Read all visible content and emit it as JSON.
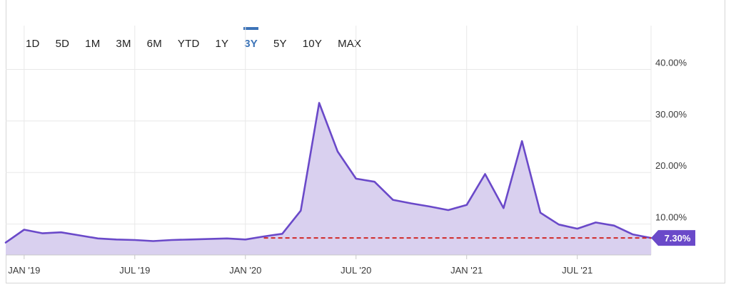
{
  "range_selector": {
    "options": [
      "1D",
      "5D",
      "1M",
      "3M",
      "6M",
      "YTD",
      "1Y",
      "3Y",
      "5Y",
      "10Y",
      "MAX"
    ],
    "selected": "3Y"
  },
  "colors": {
    "line": "#6a49c9",
    "fill": "#d9d0ef",
    "reference": "#d02828",
    "active_range": "#3d74b8",
    "grid": "#e8e8e8"
  },
  "chart_data": {
    "type": "area",
    "title": "",
    "xlabel": "",
    "ylabel": "",
    "x_range": [
      "2018-12",
      "2021-11"
    ],
    "ylim": [
      4.0,
      48.5
    ],
    "y_ticks": [
      10,
      20,
      30,
      40
    ],
    "y_tick_labels": [
      "10.00%",
      "20.00%",
      "30.00%",
      "40.00%"
    ],
    "x_ticks": [
      "2019-01",
      "2019-07",
      "2020-01",
      "2020-07",
      "2021-01",
      "2021-07"
    ],
    "x_tick_labels": [
      "JAN '19",
      "JUL '19",
      "JAN '20",
      "JUL '20",
      "JAN '21",
      "JUL '21"
    ],
    "grid": true,
    "series": [
      {
        "points": [
          [
            "2018-12",
            6.4
          ],
          [
            "2019-01",
            8.9
          ],
          [
            "2019-02",
            8.2
          ],
          [
            "2019-03",
            8.4
          ],
          [
            "2019-04",
            7.8
          ],
          [
            "2019-05",
            7.2
          ],
          [
            "2019-06",
            7.0
          ],
          [
            "2019-07",
            6.9
          ],
          [
            "2019-08",
            6.7
          ],
          [
            "2019-09",
            6.9
          ],
          [
            "2019-10",
            7.0
          ],
          [
            "2019-11",
            7.1
          ],
          [
            "2019-12",
            7.2
          ],
          [
            "2020-01",
            7.0
          ],
          [
            "2020-02",
            7.6
          ],
          [
            "2020-03",
            8.1
          ],
          [
            "2020-04",
            12.6
          ],
          [
            "2020-05",
            33.5
          ],
          [
            "2020-06",
            24.1
          ],
          [
            "2020-07",
            18.8
          ],
          [
            "2020-08",
            18.2
          ],
          [
            "2020-09",
            14.7
          ],
          [
            "2020-10",
            14.0
          ],
          [
            "2020-11",
            13.4
          ],
          [
            "2020-12",
            12.7
          ],
          [
            "2021-01",
            13.7
          ],
          [
            "2021-02",
            19.7
          ],
          [
            "2021-03",
            13.1
          ],
          [
            "2021-04",
            26.1
          ],
          [
            "2021-05",
            12.2
          ],
          [
            "2021-06",
            9.9
          ],
          [
            "2021-07",
            9.1
          ],
          [
            "2021-08",
            10.3
          ],
          [
            "2021-09",
            9.7
          ],
          [
            "2021-10",
            8.0
          ],
          [
            "2021-11",
            7.3
          ]
        ]
      }
    ],
    "reference_line": {
      "value": 7.3,
      "start": "2020-02",
      "end": "2021-11",
      "style": "dashed"
    },
    "last_value_label": "7.30%"
  }
}
